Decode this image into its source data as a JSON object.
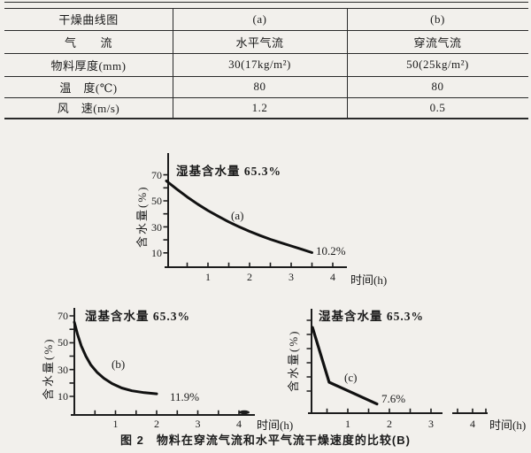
{
  "ink": "#1c1c1c",
  "table": {
    "rows": [
      {
        "label": "干燥曲线图",
        "a": "(a)",
        "b": "(b)"
      },
      {
        "label": "气　　流",
        "a": "水平气流",
        "b": "穿流气流"
      },
      {
        "label": "物料厚度(mm)",
        "a": "30(17kg/m²)",
        "b": "50(25kg/m²)"
      },
      {
        "label": "温　度(℃)",
        "a": "80",
        "b": "80"
      },
      {
        "label": "风　速(m/s)",
        "a": "1.2",
        "b": "0.5"
      }
    ]
  },
  "charts": {
    "a": {
      "ylabel": "含水量(%)",
      "xlabel": "时间(h)",
      "annotation": "湿基含水量 65.3%",
      "curve_label": "(a)",
      "end_label": "10.2%",
      "yticks": [
        "70",
        "50",
        "30",
        "10"
      ],
      "xticks": [
        "1",
        "2",
        "3",
        "4"
      ]
    },
    "b": {
      "ylabel": "含水量(%)",
      "xlabel": "时间(h)",
      "annotation": "湿基含水量 65.3%",
      "curve_label": "(b)",
      "end_label": "11.9%",
      "yticks": [
        "70",
        "50",
        "30",
        "10"
      ],
      "xticks": [
        "1",
        "2",
        "3",
        "4"
      ]
    },
    "c": {
      "ylabel": "含水量(%)",
      "xlabel": "时间(h)",
      "annotation": "湿基含水量 65.3%",
      "curve_label": "(c)",
      "end_label": "7.6%",
      "xticks": [
        "1",
        "2",
        "3",
        "4"
      ]
    }
  },
  "caption": "图 2　物料在穿流气流和水平气流干燥速度的比较(B)",
  "chart_data": [
    {
      "type": "table",
      "columns": [
        "干燥曲线图",
        "(a)",
        "(b)"
      ],
      "rows": [
        [
          "气流",
          "水平气流",
          "穿流气流"
        ],
        [
          "物料厚度(mm)",
          "30(17kg/m²)",
          "50(25kg/m²)"
        ],
        [
          "温度(℃)",
          "80",
          "80"
        ],
        [
          "风速(m/s)",
          "1.2",
          "0.5"
        ]
      ]
    },
    {
      "type": "line",
      "series_label": "(a)",
      "annotation": "湿基含水量 65.3%",
      "xlabel": "时间(h)",
      "ylabel": "含水量(%)",
      "xlim": [
        0,
        4.5
      ],
      "ylim": [
        0,
        77
      ],
      "xticks": [
        1,
        2,
        3,
        4
      ],
      "yticks": [
        10,
        20,
        30,
        40,
        50,
        60,
        70
      ],
      "x": [
        0,
        0.25,
        0.5,
        0.75,
        1,
        1.25,
        1.5,
        1.75,
        2,
        2.25,
        2.5,
        2.75,
        3,
        3.25,
        3.5
      ],
      "y": [
        65.3,
        59.0,
        53.0,
        47.5,
        42.5,
        38.0,
        33.8,
        30.0,
        26.5,
        23.3,
        20.4,
        17.8,
        15.3,
        12.8,
        10.2
      ],
      "start_value": 65.3,
      "end_value_label": "10.2%"
    },
    {
      "type": "line",
      "series_label": "(b)",
      "annotation": "湿基含水量 65.3%",
      "xlabel": "时间(h)",
      "ylabel": "含水量(%)",
      "xlim": [
        0,
        4.5
      ],
      "ylim": [
        0,
        77
      ],
      "xticks": [
        1,
        2,
        3,
        4
      ],
      "yticks": [
        10,
        20,
        30,
        40,
        50,
        60,
        70
      ],
      "x": [
        0,
        0.08,
        0.17,
        0.28,
        0.4,
        0.55,
        0.72,
        0.92,
        1.15,
        1.4,
        1.7,
        2.0
      ],
      "y": [
        65.3,
        56.0,
        47.5,
        40.0,
        33.5,
        28.0,
        23.5,
        19.5,
        16.3,
        14.2,
        12.8,
        11.9
      ],
      "start_value": 65.3,
      "end_value_label": "11.9%"
    },
    {
      "type": "line",
      "series_label": "(c)",
      "annotation": "湿基含水量 65.3%",
      "xlabel": "时间(h)",
      "ylabel": "含水量(%)",
      "xlim": [
        0,
        4.5
      ],
      "ylim": [
        0,
        77
      ],
      "xticks": [
        1,
        2,
        3,
        4
      ],
      "yticks_labeled": false,
      "x_axis_break_between": [
        3.3,
        3.6
      ],
      "x": [
        0.15,
        0.55,
        1.7
      ],
      "y": [
        65.3,
        24.0,
        7.6
      ],
      "start_value": 65.3,
      "end_value_label": "7.6%"
    }
  ]
}
